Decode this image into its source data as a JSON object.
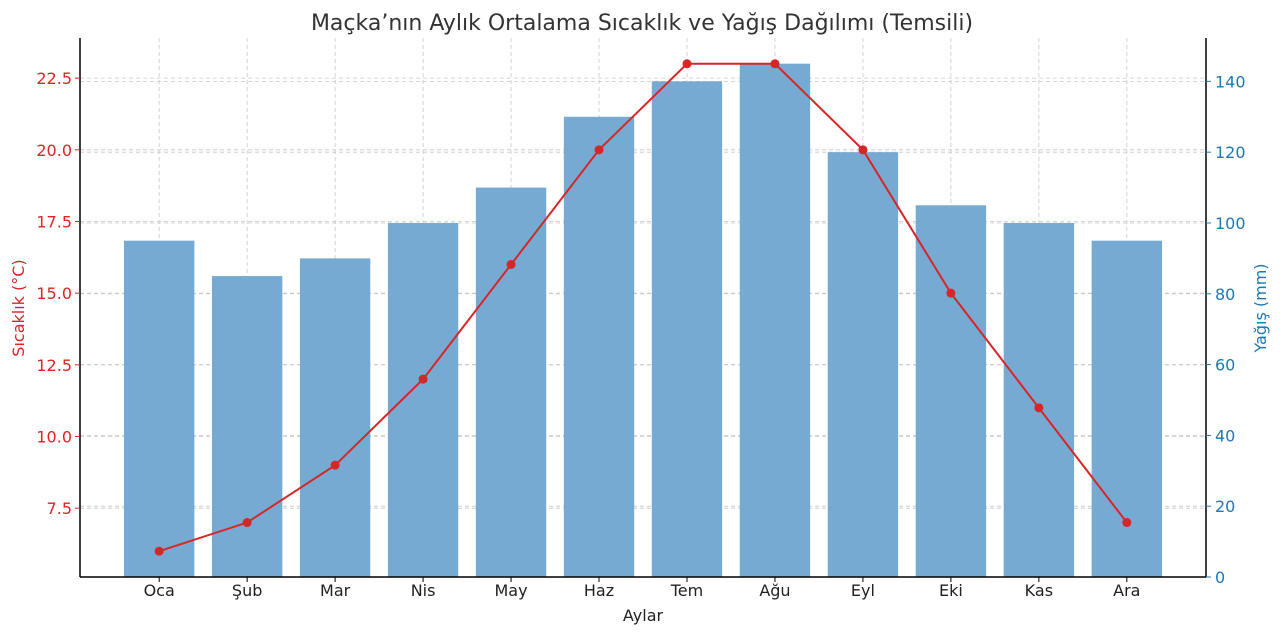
{
  "chart_data": {
    "type": "bar+line",
    "title": "Maçka’nın Aylık Ortalama Sıcaklık ve Yağış Dağılımı (Temsili)",
    "xlabel": "Aylar",
    "categories": [
      "Oca",
      "Şub",
      "Mar",
      "Nis",
      "May",
      "Haz",
      "Tem",
      "Ağu",
      "Eyl",
      "Eki",
      "Kas",
      "Ara"
    ],
    "temperature": {
      "axis_label": "Sıcaklık (°C)",
      "values": [
        6,
        7,
        9,
        12,
        16,
        20,
        23,
        23,
        20,
        15,
        11,
        7
      ],
      "ylim": [
        5.1,
        23.9
      ],
      "ticks": [
        "7.5",
        "10.0",
        "12.5",
        "15.0",
        "17.5",
        "20.0",
        "22.5"
      ],
      "color": "#d62728"
    },
    "precipitation": {
      "axis_label": "Yağış (mm)",
      "values": [
        95,
        85,
        90,
        100,
        110,
        130,
        140,
        145,
        120,
        105,
        100,
        95
      ],
      "ylim": [
        0,
        152.25
      ],
      "ticks": [
        "0",
        "20",
        "40",
        "60",
        "80",
        "100",
        "120",
        "140"
      ],
      "color": "#1f77b4",
      "bar_color": "#77aad2"
    },
    "grid": true
  }
}
